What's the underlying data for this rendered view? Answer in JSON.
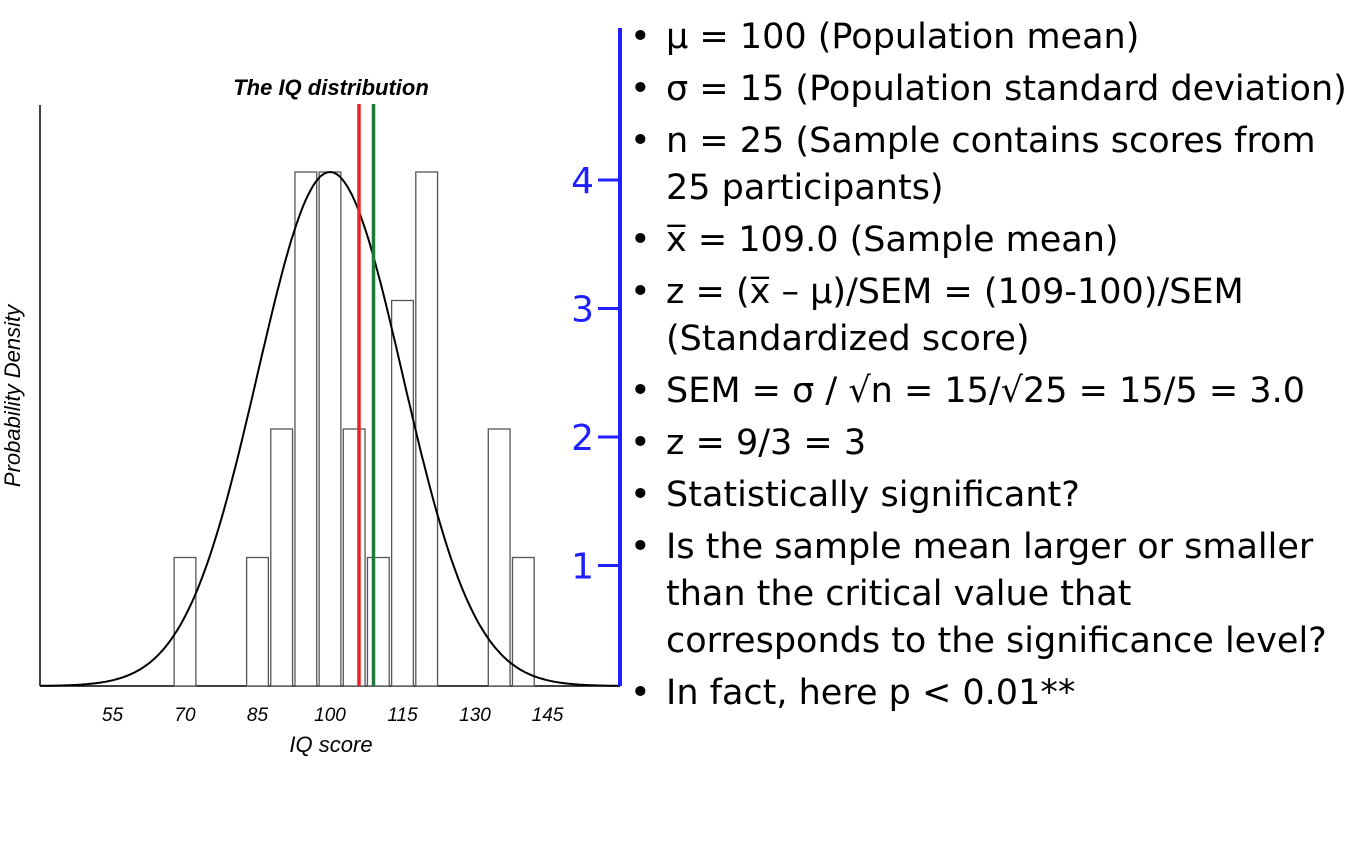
{
  "colors": {
    "red_line": "#ee2222",
    "green_line": "#1e7a3a",
    "count_axis": "#1f1fff",
    "bar_stroke": "#555555",
    "curve": "#000000"
  },
  "chart_data": {
    "type": "bar",
    "title": "The IQ distribution",
    "xlabel": "IQ score",
    "ylabel": "Probability Density",
    "x_ticks": [
      55,
      70,
      85,
      100,
      115,
      130,
      145
    ],
    "xlim": [
      40,
      160
    ],
    "bar_width": 4.5,
    "bars": [
      {
        "x": 70,
        "count": 1
      },
      {
        "x": 85,
        "count": 1
      },
      {
        "x": 90,
        "count": 2
      },
      {
        "x": 95,
        "count": 4
      },
      {
        "x": 100,
        "count": 4
      },
      {
        "x": 105,
        "count": 2
      },
      {
        "x": 110,
        "count": 1
      },
      {
        "x": 115,
        "count": 3
      },
      {
        "x": 120,
        "count": 4
      },
      {
        "x": 135,
        "count": 2
      },
      {
        "x": 140,
        "count": 1
      }
    ],
    "count_axis": {
      "ticks": [
        1,
        2,
        3,
        4
      ],
      "range": [
        0,
        4.5
      ]
    },
    "normal_curve": {
      "mean": 100,
      "sd": 15
    },
    "vertical_lines": [
      {
        "x": 106,
        "color": "red"
      },
      {
        "x": 109,
        "color": "green"
      }
    ]
  },
  "bullets": [
    {
      "text": "μ = 100 (Population mean)"
    },
    {
      "text": "σ = 15 (Population standard deviation)"
    },
    {
      "text": "n = 25 (Sample contains scores from 25 participants)"
    },
    {
      "text": "x̅ = 109.0 (Sample mean)"
    },
    {
      "text": "z =  (x̅ – μ)/SEM = (109-100)/SEM (Standardized score)"
    },
    {
      "text": "SEM = σ / √n = 15/√25 = 15/5 = 3.0"
    },
    {
      "text": "z = 9/3 = 3"
    },
    {
      "text": "Statistically significant?"
    },
    {
      "text": "Is the sample mean larger or smaller than the critical value that corresponds to the significance level?"
    },
    {
      "text": "In fact, here p < 0.01**"
    }
  ],
  "bullet_char": "•"
}
